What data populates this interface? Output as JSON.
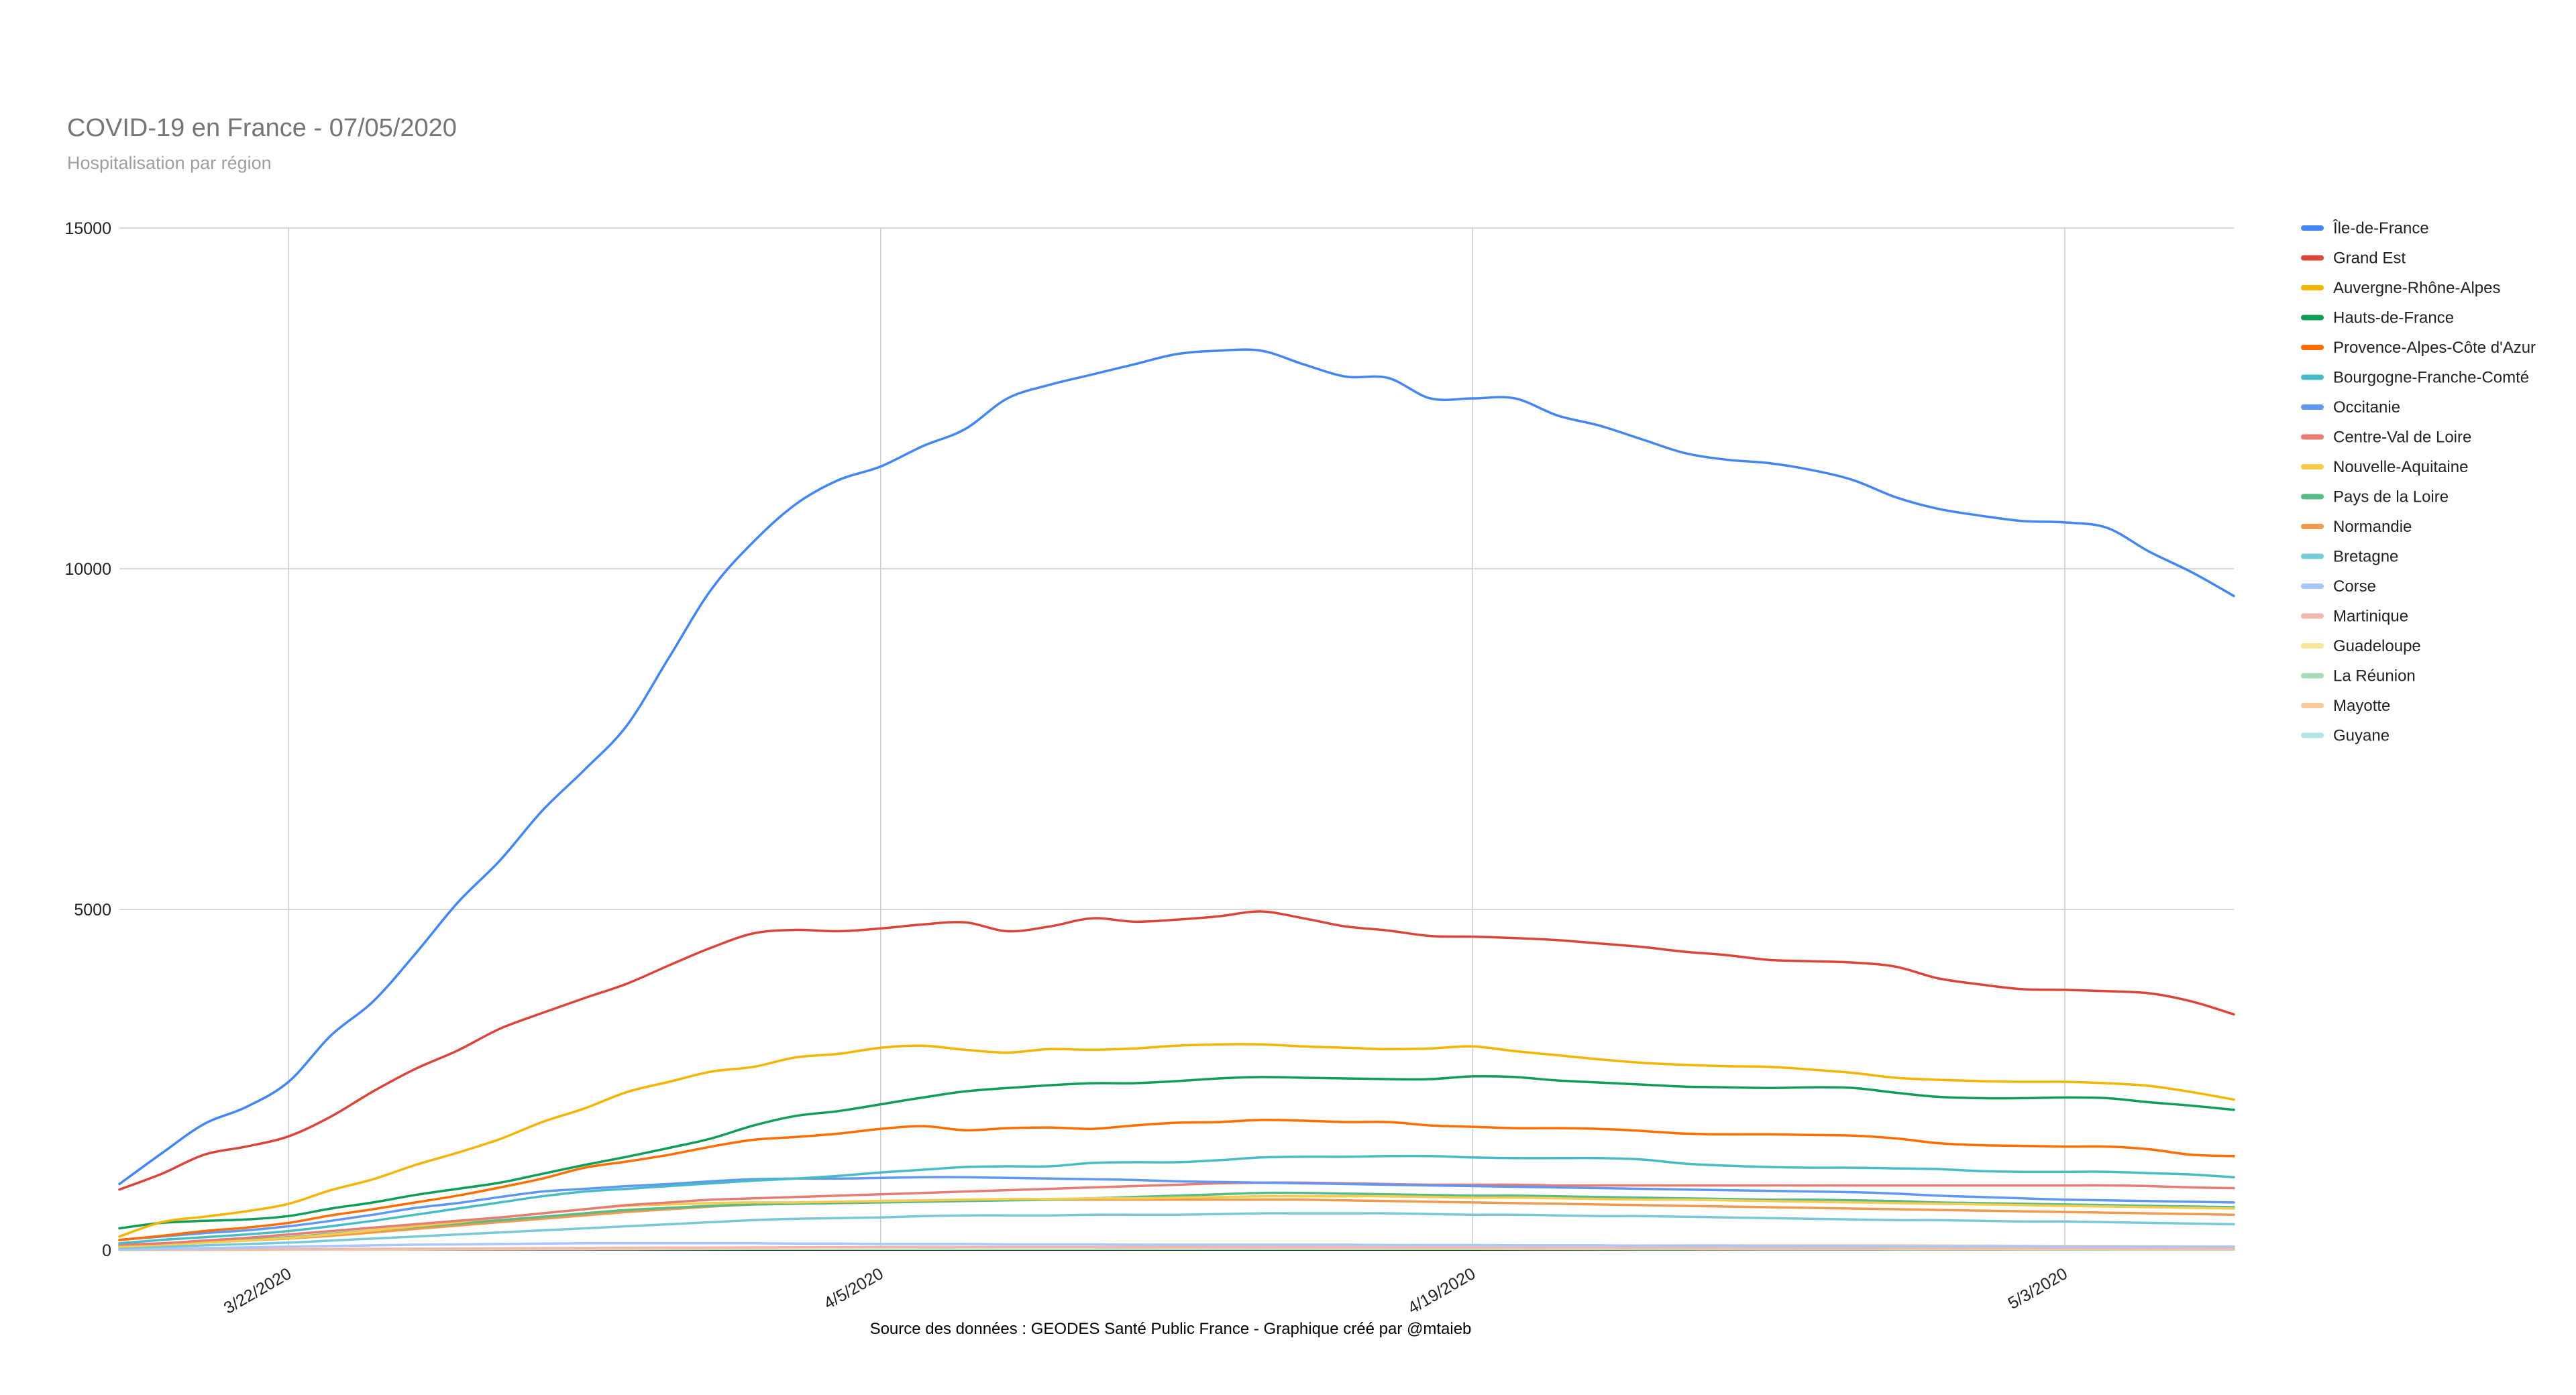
{
  "chart_data": {
    "type": "line",
    "title": "COVID-19 en France - 07/05/2020",
    "subtitle": "Hospitalisation par région",
    "source": "Source des données : GEODES Santé Public France -  Graphique créé par @mtaieb",
    "x_start": "2020-03-18",
    "x_end": "2020-05-07",
    "x_ticks": [
      "3/22/2020",
      "4/5/2020",
      "4/19/2020",
      "5/3/2020"
    ],
    "ylim": [
      0,
      15000
    ],
    "y_ticks": [
      "0",
      "5000",
      "10000",
      "15000"
    ],
    "grid": true,
    "legend_position": "right",
    "series": [
      {
        "name": "Île-de-France",
        "color": "#4285f4",
        "values": [
          970,
          1420,
          1850,
          2100,
          2470,
          3150,
          3650,
          4350,
          5100,
          5720,
          6450,
          7050,
          7700,
          8700,
          9700,
          10400,
          10950,
          11300,
          11500,
          11800,
          12050,
          12500,
          12700,
          12850,
          13000,
          13150,
          13200,
          13200,
          13000,
          12820,
          12800,
          12500,
          12500,
          12500,
          12250,
          12100,
          11900,
          11700,
          11600,
          11550,
          11450,
          11300,
          11050,
          10880,
          10780,
          10700,
          10680,
          10600,
          10250,
          9950,
          9600
        ]
      },
      {
        "name": "Grand Est",
        "color": "#db4437",
        "values": [
          890,
          1120,
          1400,
          1520,
          1670,
          1960,
          2330,
          2660,
          2930,
          3250,
          3480,
          3700,
          3910,
          4180,
          4440,
          4650,
          4700,
          4680,
          4720,
          4780,
          4810,
          4680,
          4750,
          4870,
          4820,
          4850,
          4900,
          4970,
          4870,
          4750,
          4690,
          4610,
          4600,
          4580,
          4550,
          4500,
          4450,
          4380,
          4330,
          4260,
          4240,
          4220,
          4160,
          3990,
          3900,
          3830,
          3820,
          3800,
          3770,
          3650,
          3460
        ]
      },
      {
        "name": "Auvergne-Rhône-Alpes",
        "color": "#f4b400",
        "values": [
          200,
          410,
          490,
          570,
          680,
          880,
          1040,
          1250,
          1430,
          1630,
          1880,
          2080,
          2320,
          2470,
          2620,
          2690,
          2830,
          2880,
          2970,
          3000,
          2940,
          2900,
          2950,
          2940,
          2960,
          3000,
          3020,
          3020,
          2990,
          2970,
          2950,
          2960,
          2990,
          2920,
          2860,
          2800,
          2750,
          2720,
          2700,
          2690,
          2650,
          2600,
          2530,
          2500,
          2480,
          2470,
          2470,
          2450,
          2410,
          2320,
          2210
        ]
      },
      {
        "name": "Hauts-de-France",
        "color": "#0f9d58",
        "values": [
          320,
          400,
          430,
          450,
          500,
          610,
          700,
          810,
          900,
          990,
          1120,
          1250,
          1370,
          1500,
          1640,
          1830,
          1970,
          2040,
          2140,
          2240,
          2330,
          2380,
          2420,
          2450,
          2450,
          2480,
          2520,
          2540,
          2530,
          2520,
          2510,
          2510,
          2550,
          2540,
          2490,
          2460,
          2430,
          2400,
          2390,
          2380,
          2390,
          2380,
          2310,
          2250,
          2230,
          2230,
          2240,
          2230,
          2170,
          2120,
          2060
        ]
      },
      {
        "name": "Provence-Alpes-Côte d'Azur",
        "color": "#ff6d00",
        "values": [
          150,
          210,
          280,
          330,
          400,
          510,
          600,
          700,
          800,
          920,
          1050,
          1210,
          1300,
          1400,
          1520,
          1620,
          1660,
          1710,
          1780,
          1820,
          1760,
          1790,
          1800,
          1780,
          1830,
          1870,
          1880,
          1910,
          1900,
          1880,
          1880,
          1830,
          1810,
          1790,
          1790,
          1780,
          1750,
          1710,
          1700,
          1700,
          1690,
          1680,
          1640,
          1570,
          1540,
          1530,
          1520,
          1520,
          1480,
          1400,
          1380
        ]
      },
      {
        "name": "Bourgogne-Franche-Comté",
        "color": "#46bdc6",
        "values": [
          100,
          150,
          190,
          230,
          280,
          350,
          430,
          520,
          610,
          700,
          790,
          860,
          900,
          940,
          980,
          1020,
          1050,
          1090,
          1140,
          1180,
          1220,
          1230,
          1230,
          1280,
          1290,
          1290,
          1320,
          1360,
          1370,
          1370,
          1380,
          1380,
          1360,
          1350,
          1350,
          1350,
          1330,
          1270,
          1240,
          1220,
          1210,
          1210,
          1200,
          1190,
          1160,
          1150,
          1150,
          1150,
          1130,
          1110,
          1070
        ]
      },
      {
        "name": "Occitanie",
        "color": "#5e97f6",
        "values": [
          150,
          200,
          250,
          290,
          350,
          430,
          520,
          620,
          690,
          780,
          860,
          900,
          940,
          970,
          1010,
          1040,
          1050,
          1050,
          1060,
          1070,
          1070,
          1060,
          1050,
          1040,
          1030,
          1010,
          1000,
          990,
          980,
          970,
          960,
          950,
          940,
          930,
          920,
          910,
          900,
          890,
          880,
          870,
          860,
          850,
          830,
          800,
          780,
          760,
          740,
          730,
          720,
          710,
          700
        ]
      },
      {
        "name": "Centre-Val de Loire",
        "color": "#e67c73",
        "values": [
          80,
          100,
          140,
          180,
          230,
          280,
          330,
          380,
          430,
          480,
          540,
          600,
          660,
          700,
          740,
          760,
          780,
          800,
          820,
          840,
          860,
          880,
          900,
          920,
          940,
          960,
          980,
          990,
          990,
          980,
          970,
          960,
          960,
          960,
          950,
          950,
          950,
          950,
          950,
          950,
          950,
          950,
          950,
          950,
          950,
          950,
          950,
          950,
          940,
          920,
          910
        ]
      },
      {
        "name": "Nouvelle-Aquitaine",
        "color": "#f7cb4d",
        "values": [
          50,
          80,
          110,
          140,
          180,
          230,
          290,
          350,
          410,
          480,
          540,
          600,
          650,
          670,
          690,
          700,
          700,
          710,
          720,
          730,
          740,
          750,
          750,
          760,
          760,
          770,
          780,
          790,
          790,
          790,
          790,
          780,
          770,
          770,
          760,
          750,
          740,
          740,
          730,
          720,
          710,
          700,
          690,
          680,
          670,
          660,
          650,
          640,
          630,
          620,
          610
        ]
      },
      {
        "name": "Pays de la Loire",
        "color": "#57bb8a",
        "values": [
          60,
          90,
          120,
          150,
          190,
          240,
          290,
          340,
          390,
          440,
          490,
          540,
          590,
          620,
          650,
          670,
          680,
          690,
          700,
          710,
          720,
          730,
          740,
          760,
          780,
          800,
          820,
          840,
          840,
          830,
          820,
          810,
          800,
          800,
          790,
          780,
          770,
          760,
          750,
          740,
          740,
          730,
          720,
          700,
          690,
          680,
          670,
          660,
          650,
          640,
          630
        ]
      },
      {
        "name": "Normandie",
        "color": "#f09a4c",
        "values": [
          50,
          80,
          110,
          140,
          170,
          210,
          260,
          310,
          360,
          410,
          460,
          510,
          560,
          600,
          640,
          670,
          690,
          710,
          720,
          730,
          740,
          740,
          740,
          740,
          740,
          740,
          740,
          740,
          740,
          730,
          720,
          710,
          700,
          690,
          680,
          670,
          660,
          650,
          640,
          630,
          620,
          610,
          600,
          590,
          580,
          570,
          560,
          550,
          540,
          530,
          520
        ]
      },
      {
        "name": "Bretagne",
        "color": "#78c9d8",
        "values": [
          30,
          50,
          70,
          90,
          110,
          140,
          170,
          200,
          230,
          260,
          290,
          320,
          350,
          380,
          410,
          440,
          460,
          470,
          480,
          500,
          510,
          510,
          510,
          520,
          520,
          520,
          530,
          540,
          540,
          540,
          540,
          530,
          520,
          520,
          510,
          500,
          500,
          490,
          480,
          470,
          460,
          450,
          440,
          440,
          430,
          420,
          420,
          410,
          400,
          390,
          380
        ]
      },
      {
        "name": "Corse",
        "color": "#a8c7fa",
        "values": [
          10,
          20,
          30,
          40,
          50,
          60,
          70,
          80,
          85,
          90,
          95,
          100,
          100,
          100,
          100,
          100,
          95,
          95,
          90,
          90,
          90,
          85,
          85,
          85,
          80,
          80,
          80,
          80,
          80,
          80,
          75,
          75,
          75,
          70,
          70,
          70,
          65,
          65,
          65,
          60,
          60,
          60,
          55,
          55,
          55,
          55,
          50,
          50,
          50,
          50,
          50
        ]
      },
      {
        "name": "Martinique",
        "color": "#f2b8b0",
        "values": [
          5,
          8,
          10,
          12,
          15,
          18,
          20,
          22,
          25,
          28,
          30,
          32,
          34,
          36,
          38,
          40,
          42,
          44,
          45,
          46,
          46,
          46,
          46,
          46,
          45,
          44,
          43,
          42,
          41,
          40,
          39,
          38,
          37,
          36,
          35,
          34,
          33,
          32,
          31,
          30,
          29,
          28,
          27,
          26,
          25,
          24,
          23,
          22,
          21,
          20,
          20
        ]
      },
      {
        "name": "Guadeloupe",
        "color": "#fbe59b",
        "values": [
          5,
          8,
          10,
          12,
          14,
          16,
          18,
          20,
          22,
          24,
          26,
          28,
          30,
          32,
          34,
          36,
          37,
          38,
          39,
          40,
          40,
          40,
          40,
          40,
          39,
          38,
          37,
          36,
          35,
          34,
          33,
          32,
          31,
          30,
          29,
          28,
          27,
          26,
          25,
          24,
          23,
          22,
          21,
          20,
          19,
          18,
          17,
          16,
          15,
          15,
          15
        ]
      },
      {
        "name": "La Réunion",
        "color": "#a8dcb8",
        "values": [
          3,
          5,
          7,
          9,
          11,
          13,
          15,
          17,
          19,
          21,
          23,
          25,
          26,
          27,
          28,
          29,
          30,
          30,
          30,
          30,
          29,
          28,
          27,
          26,
          25,
          24,
          23,
          22,
          21,
          20,
          19,
          18,
          17,
          16,
          15,
          14,
          13,
          12,
          11,
          10,
          10,
          10,
          9,
          9,
          9,
          8,
          8,
          8,
          8,
          7,
          7
        ]
      },
      {
        "name": "Mayotte",
        "color": "#f9cb9c",
        "values": [
          2,
          3,
          4,
          5,
          6,
          7,
          8,
          10,
          12,
          14,
          16,
          18,
          20,
          22,
          24,
          26,
          28,
          30,
          32,
          34,
          36,
          38,
          40,
          42,
          44,
          46,
          48,
          50,
          52,
          54,
          56,
          58,
          60,
          62,
          64,
          66,
          68,
          70,
          70,
          70,
          70,
          70,
          70,
          68,
          66,
          64,
          62,
          60,
          58,
          56,
          54
        ]
      },
      {
        "name": "Guyane",
        "color": "#b3e5e6",
        "values": [
          2,
          3,
          4,
          5,
          6,
          7,
          8,
          9,
          10,
          11,
          12,
          13,
          14,
          15,
          16,
          17,
          18,
          18,
          18,
          18,
          18,
          18,
          18,
          18,
          18,
          18,
          18,
          18,
          18,
          18,
          18,
          18,
          18,
          18,
          18,
          18,
          18,
          18,
          18,
          18,
          18,
          18,
          18,
          18,
          18,
          18,
          18,
          18,
          18,
          18,
          18
        ]
      }
    ]
  }
}
